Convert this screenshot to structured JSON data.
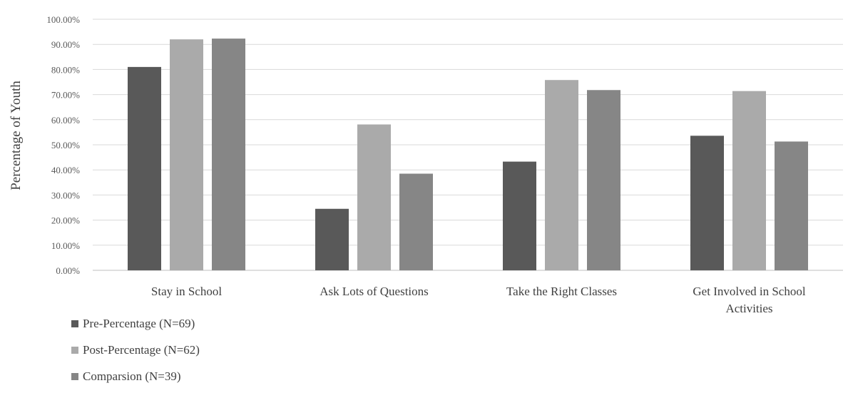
{
  "chart_data": {
    "type": "bar",
    "title": "",
    "xlabel": "",
    "ylabel": "Percentage of Youth",
    "ylim": [
      0,
      100
    ],
    "yticks": [
      "0.00%",
      "10.00%",
      "20.00%",
      "30.00%",
      "40.00%",
      "50.00%",
      "60.00%",
      "70.00%",
      "80.00%",
      "90.00%",
      "100.00%"
    ],
    "categories": [
      "Stay in School",
      "Ask Lots of Questions",
      "Take the Right Classes",
      "Get Involved in School Activities"
    ],
    "series": [
      {
        "name": "Pre-Percentage (N=69)",
        "color": "#595959",
        "values": [
          81.0,
          24.5,
          43.3,
          53.6
        ]
      },
      {
        "name": "Post-Percentage (N=62)",
        "color": "#aaaaaa",
        "values": [
          92.0,
          58.1,
          75.8,
          71.4
        ]
      },
      {
        "name": "Comparsion (N=39)",
        "color": "#868686",
        "values": [
          92.3,
          38.5,
          71.8,
          51.3
        ]
      }
    ],
    "grid": true,
    "legend_position": "bottom-left"
  }
}
